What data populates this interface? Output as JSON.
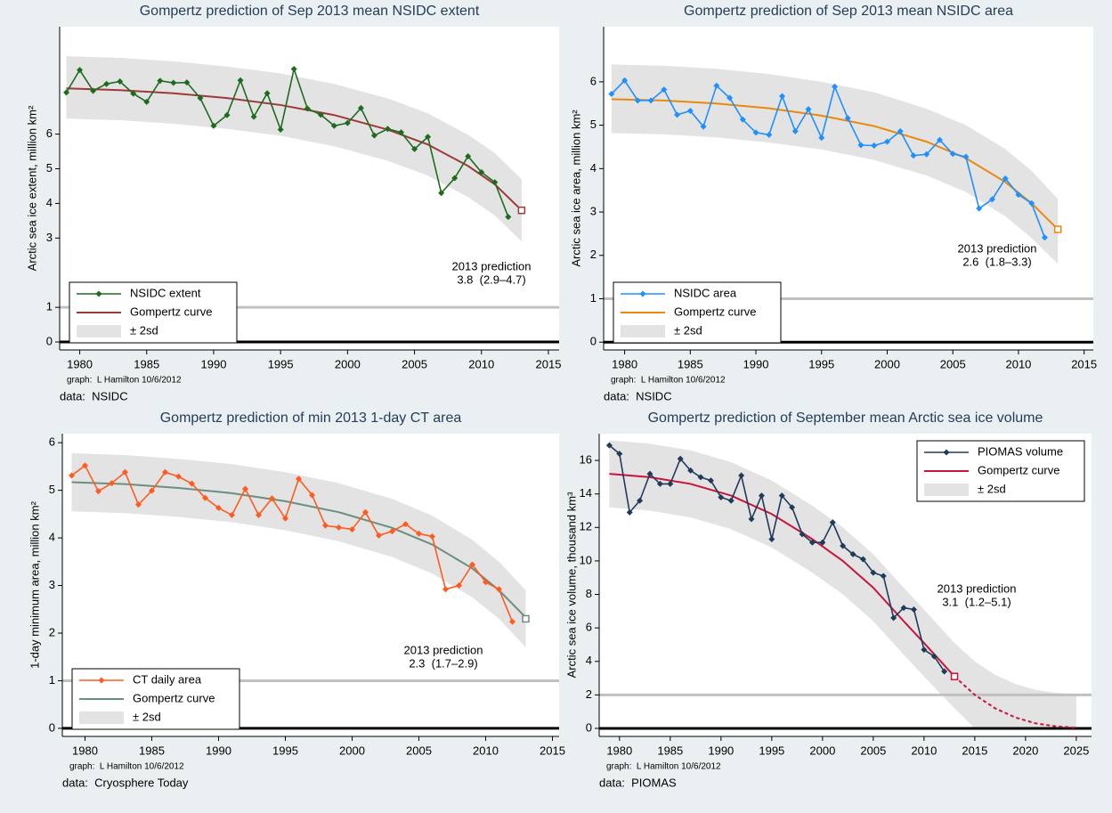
{
  "chart_data": [
    {
      "type": "line",
      "title": "Gompertz prediction of Sep 2013 mean NSIDC extent",
      "y_label": "Arctic sea ice extent, million km²",
      "notes": [
        "graph:  L Hamilton 10/6/2012",
        "data:  NSIDC"
      ],
      "x": [
        1979,
        1980,
        1981,
        1982,
        1983,
        1984,
        1985,
        1986,
        1987,
        1988,
        1989,
        1990,
        1991,
        1992,
        1993,
        1994,
        1995,
        1996,
        1997,
        1998,
        1999,
        2000,
        2001,
        2002,
        2003,
        2004,
        2005,
        2006,
        2007,
        2008,
        2009,
        2010,
        2011,
        2012
      ],
      "series": [
        {
          "name": "NSIDC extent",
          "color": "#1e6b1e",
          "values": [
            7.2,
            7.85,
            7.25,
            7.45,
            7.52,
            7.17,
            6.93,
            7.54,
            7.48,
            7.49,
            7.04,
            6.24,
            6.55,
            7.55,
            6.5,
            7.18,
            6.13,
            7.88,
            6.74,
            6.56,
            6.24,
            6.32,
            6.75,
            5.96,
            6.15,
            6.05,
            5.57,
            5.92,
            4.3,
            4.73,
            5.36,
            4.9,
            4.61,
            3.61
          ]
        },
        {
          "name": "Gompertz curve",
          "color": "#9c3a3a",
          "x": [
            1979,
            1983,
            1987,
            1991,
            1995,
            1999,
            2003,
            2006,
            2009,
            2011,
            2013
          ],
          "values": [
            7.32,
            7.27,
            7.18,
            7.04,
            6.84,
            6.55,
            6.13,
            5.7,
            5.08,
            4.55,
            3.8
          ]
        },
        {
          "name": "± 2sd",
          "color": "#e3e3e3",
          "x": [
            1979,
            1983,
            1987,
            1991,
            1995,
            1999,
            2003,
            2006,
            2009,
            2011,
            2013
          ],
          "upper": [
            8.25,
            8.2,
            8.1,
            7.95,
            7.75,
            7.45,
            7.03,
            6.6,
            5.98,
            5.45,
            4.7
          ],
          "lower": [
            6.45,
            6.4,
            6.3,
            6.15,
            5.95,
            5.65,
            5.23,
            4.8,
            4.18,
            3.65,
            2.9
          ]
        }
      ],
      "prediction": {
        "x": 2013,
        "value": 3.8
      },
      "annotation": [
        "2013 prediction",
        "3.8  (2.9–4.7)"
      ],
      "hlines": [
        {
          "value": 0,
          "color": "#000000"
        },
        {
          "value": 1,
          "color": "#c0c0c0"
        }
      ],
      "xlim": [
        1978.5,
        2015.8
      ],
      "ylim": [
        -0.23,
        9.1
      ],
      "xticks": [
        1980,
        1985,
        1990,
        1995,
        2000,
        2005,
        2010,
        2015
      ],
      "yticks": [
        0,
        1,
        3,
        4,
        5,
        6
      ],
      "legend": "bottom-left"
    },
    {
      "type": "line",
      "title": "Gompertz prediction of Sep 2013 mean NSIDC area",
      "y_label": "Arctic sea ice area, million km²",
      "notes": [
        "graph:  L Hamilton 10/6/2012",
        "data:  NSIDC"
      ],
      "x": [
        1979,
        1980,
        1981,
        1982,
        1983,
        1984,
        1985,
        1986,
        1987,
        1988,
        1989,
        1990,
        1991,
        1992,
        1993,
        1994,
        1995,
        1996,
        1997,
        1998,
        1999,
        2000,
        2001,
        2002,
        2003,
        2004,
        2005,
        2006,
        2007,
        2008,
        2009,
        2010,
        2011,
        2012
      ],
      "series": [
        {
          "name": "NSIDC area",
          "color": "#1e90ff",
          "values": [
            5.72,
            6.03,
            5.57,
            5.57,
            5.82,
            5.24,
            5.33,
            4.97,
            5.91,
            5.63,
            5.13,
            4.83,
            4.78,
            5.67,
            4.86,
            5.37,
            4.71,
            5.89,
            5.16,
            4.54,
            4.53,
            4.62,
            4.86,
            4.3,
            4.33,
            4.66,
            4.34,
            4.27,
            3.08,
            3.29,
            3.77,
            3.4,
            3.2,
            2.41
          ]
        },
        {
          "name": "Gompertz curve",
          "color": "#e8890c",
          "x": [
            1979,
            1983,
            1987,
            1991,
            1995,
            1999,
            2003,
            2006,
            2009,
            2011,
            2013
          ],
          "values": [
            5.6,
            5.57,
            5.5,
            5.39,
            5.22,
            4.98,
            4.62,
            4.24,
            3.69,
            3.2,
            2.6
          ]
        },
        {
          "name": "± 2sd",
          "color": "#e3e3e3",
          "x": [
            1979,
            1983,
            1987,
            1991,
            1995,
            1999,
            2003,
            2006,
            2009,
            2011,
            2013
          ],
          "upper": [
            6.4,
            6.37,
            6.3,
            6.18,
            6.0,
            5.76,
            5.38,
            5.0,
            4.45,
            3.95,
            3.3
          ],
          "lower": [
            4.82,
            4.79,
            4.72,
            4.6,
            4.44,
            4.2,
            3.84,
            3.46,
            2.9,
            2.4,
            1.8
          ]
        }
      ],
      "prediction": {
        "x": 2013,
        "value": 2.6
      },
      "annotation": [
        "2013 prediction",
        "2.6  (1.8–3.3)"
      ],
      "hlines": [
        {
          "value": 0,
          "color": "#000000"
        },
        {
          "value": 1,
          "color": "#c0c0c0"
        }
      ],
      "xlim": [
        1978.4,
        2015.7
      ],
      "ylim": [
        -0.18,
        7.27
      ],
      "xticks": [
        1980,
        1985,
        1990,
        1995,
        2000,
        2005,
        2010,
        2015
      ],
      "yticks": [
        0,
        1,
        2,
        3,
        4,
        5,
        6
      ],
      "legend": "bottom-left"
    },
    {
      "type": "line",
      "title": "Gompertz prediction of min 2013 1-day CT area",
      "y_label": "1-day minimum area, million km²",
      "notes": [
        "graph:  L Hamilton 10/6/2012",
        "data:  Cryosphere Today"
      ],
      "x": [
        1979,
        1980,
        1981,
        1982,
        1983,
        1984,
        1985,
        1986,
        1987,
        1988,
        1989,
        1990,
        1991,
        1992,
        1993,
        1994,
        1995,
        1996,
        1997,
        1998,
        1999,
        2000,
        2001,
        2002,
        2003,
        2004,
        2005,
        2006,
        2007,
        2008,
        2009,
        2010,
        2011,
        2012
      ],
      "series": [
        {
          "name": "CT daily area",
          "color": "#ff5a1f",
          "values": [
            5.31,
            5.52,
            4.98,
            5.15,
            5.38,
            4.7,
            4.99,
            5.38,
            5.29,
            5.14,
            4.84,
            4.63,
            4.48,
            5.03,
            4.48,
            4.83,
            4.41,
            5.24,
            4.9,
            4.26,
            4.22,
            4.18,
            4.54,
            4.05,
            4.14,
            4.29,
            4.09,
            4.03,
            2.92,
            3.0,
            3.44,
            3.07,
            2.92,
            2.24
          ]
        },
        {
          "name": "Gompertz curve",
          "color": "#6b8e7f",
          "x": [
            1979,
            1983,
            1987,
            1991,
            1995,
            1999,
            2003,
            2006,
            2009,
            2011,
            2013
          ],
          "values": [
            5.17,
            5.13,
            5.05,
            4.94,
            4.77,
            4.54,
            4.21,
            3.86,
            3.36,
            2.9,
            2.33
          ]
        },
        {
          "name": "± 2sd",
          "color": "#e3e3e3",
          "x": [
            1979,
            1983,
            1987,
            1991,
            1995,
            1999,
            2003,
            2006,
            2009,
            2011,
            2013
          ],
          "upper": [
            5.78,
            5.74,
            5.66,
            5.55,
            5.38,
            5.15,
            4.82,
            4.47,
            3.96,
            3.5,
            2.9
          ],
          "lower": [
            4.56,
            4.52,
            4.44,
            4.33,
            4.16,
            3.93,
            3.6,
            3.25,
            2.75,
            2.3,
            1.7
          ]
        }
      ],
      "prediction": {
        "x": 2013,
        "value": 2.3
      },
      "annotation": [
        "2013 prediction",
        "2.3  (1.7–2.9)"
      ],
      "hlines": [
        {
          "value": 0,
          "color": "#000000"
        },
        {
          "value": 1,
          "color": "#c0c0c0"
        }
      ],
      "xlim": [
        1978.3,
        2015.5
      ],
      "ylim": [
        -0.17,
        6.19
      ],
      "xticks": [
        1980,
        1985,
        1990,
        1995,
        2000,
        2005,
        2010,
        2015
      ],
      "yticks": [
        0,
        1,
        2,
        3,
        4,
        5,
        6
      ],
      "legend": "bottom-left"
    },
    {
      "type": "line",
      "title": "Gompertz prediction of September mean Arctic sea ice volume",
      "y_label": "Arctic sea ice volume, thousand km³",
      "notes": [
        "graph:  L Hamilton 10/6/2012",
        "data:  PIOMAS"
      ],
      "x": [
        1979,
        1980,
        1981,
        1982,
        1983,
        1984,
        1985,
        1986,
        1987,
        1988,
        1989,
        1990,
        1991,
        1992,
        1993,
        1994,
        1995,
        1996,
        1997,
        1998,
        1999,
        2000,
        2001,
        2002,
        2003,
        2004,
        2005,
        2006,
        2007,
        2008,
        2009,
        2010,
        2011,
        2012
      ],
      "series": [
        {
          "name": "PIOMAS volume",
          "color": "#1f3b5a",
          "values": [
            16.9,
            16.4,
            12.9,
            13.6,
            15.2,
            14.6,
            14.6,
            16.1,
            15.4,
            15.0,
            14.8,
            13.8,
            13.6,
            15.1,
            12.5,
            13.9,
            11.3,
            13.9,
            13.2,
            11.6,
            11.1,
            11.1,
            12.3,
            10.9,
            10.4,
            10.1,
            9.3,
            9.1,
            6.6,
            7.2,
            7.1,
            4.7,
            4.3,
            3.4
          ]
        },
        {
          "name": "Gompertz curve",
          "color": "#c8143c",
          "dash_after": 2013,
          "x": [
            1979,
            1983,
            1987,
            1991,
            1995,
            1999,
            2002,
            2005,
            2008,
            2010,
            2013,
            2015,
            2017,
            2019,
            2021,
            2023,
            2025
          ],
          "values": [
            15.2,
            15.0,
            14.6,
            13.9,
            12.8,
            11.3,
            10.0,
            8.4,
            6.4,
            5.1,
            3.1,
            2.0,
            1.2,
            0.65,
            0.3,
            0.12,
            0.04
          ]
        },
        {
          "name": "± 2sd",
          "color": "#e3e3e3",
          "x": [
            1979,
            1983,
            1987,
            1991,
            1995,
            1999,
            2002,
            2005,
            2008,
            2010,
            2013,
            2015,
            2017,
            2019,
            2021,
            2023,
            2025
          ],
          "upper": [
            17.2,
            17.0,
            16.6,
            15.9,
            14.8,
            13.3,
            12.0,
            10.4,
            8.4,
            7.1,
            5.1,
            4.0,
            3.2,
            2.65,
            2.3,
            2.12,
            2.04
          ],
          "lower": [
            13.2,
            13.0,
            12.6,
            11.9,
            10.8,
            9.3,
            8.0,
            6.4,
            4.4,
            3.1,
            1.2,
            0,
            0,
            0,
            0,
            0,
            0
          ]
        }
      ],
      "prediction": {
        "x": 2013,
        "value": 3.1
      },
      "annotation": [
        "2013 prediction",
        "3.1  (1.2–5.1)"
      ],
      "hlines": [
        {
          "value": 0,
          "color": "#000000"
        },
        {
          "value": 2,
          "color": "#c0c0c0"
        }
      ],
      "xlim": [
        1978.0,
        2026.5
      ],
      "ylim": [
        -0.48,
        17.6
      ],
      "xticks": [
        1980,
        1985,
        1990,
        1995,
        2000,
        2005,
        2010,
        2015,
        2020,
        2025
      ],
      "yticks": [
        0,
        2,
        4,
        6,
        8,
        10,
        12,
        14,
        16
      ],
      "legend": "top-right"
    }
  ]
}
